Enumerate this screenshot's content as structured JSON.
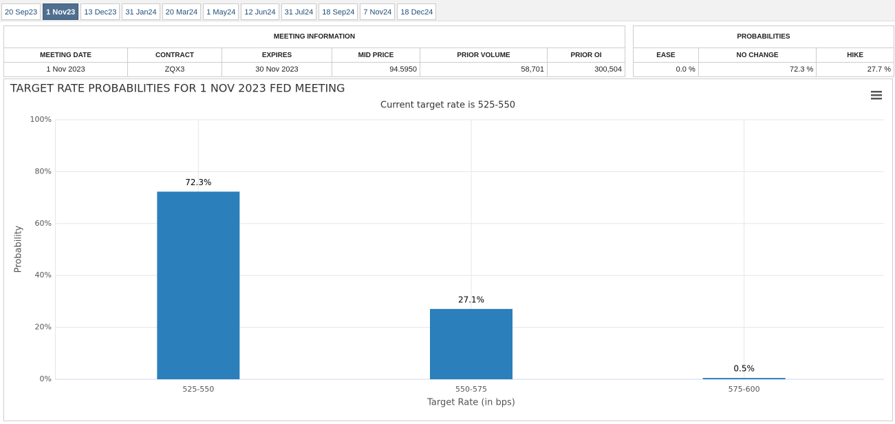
{
  "tabs": [
    "20 Sep23",
    "1 Nov23",
    "13 Dec23",
    "31 Jan24",
    "20 Mar24",
    "1 May24",
    "12 Jun24",
    "31 Jul24",
    "18 Sep24",
    "7 Nov24",
    "18 Dec24"
  ],
  "active_tab": 1,
  "meeting_information": {
    "title": "MEETING INFORMATION",
    "columns": [
      "MEETING DATE",
      "CONTRACT",
      "EXPIRES",
      "MID PRICE",
      "PRIOR VOLUME",
      "PRIOR OI"
    ],
    "rows": [
      [
        "1 Nov 2023",
        "ZQX3",
        "30 Nov 2023",
        "94.5950",
        "58,701",
        "300,504"
      ]
    ]
  },
  "probabilities": {
    "title": "PROBABILITIES",
    "columns": [
      "EASE",
      "NO CHANGE",
      "HIKE"
    ],
    "rows": [
      [
        "0.0 %",
        "72.3 %",
        "27.7 %"
      ]
    ]
  },
  "chart_data": {
    "type": "bar",
    "title": "TARGET RATE PROBABILITIES FOR 1 NOV 2023 FED MEETING",
    "subtitle": "Current target rate is 525-550",
    "x_label": "Target Rate (in bps)",
    "y_label": "Probability",
    "categories": [
      "525-550",
      "550-575",
      "575-600"
    ],
    "values": [
      72.3,
      27.1,
      0.5
    ],
    "value_labels": [
      "72.3%",
      "27.1%",
      "0.5%"
    ],
    "color": "#2b7fba",
    "ylim": [
      0,
      100
    ],
    "yticks": [
      {
        "value": 0,
        "label": "0%"
      },
      {
        "value": 20,
        "label": "20%"
      },
      {
        "value": 40,
        "label": "40%"
      },
      {
        "value": 60,
        "label": "60%"
      },
      {
        "value": 80,
        "label": "80%"
      },
      {
        "value": 100,
        "label": "100%"
      }
    ],
    "grid": true
  }
}
